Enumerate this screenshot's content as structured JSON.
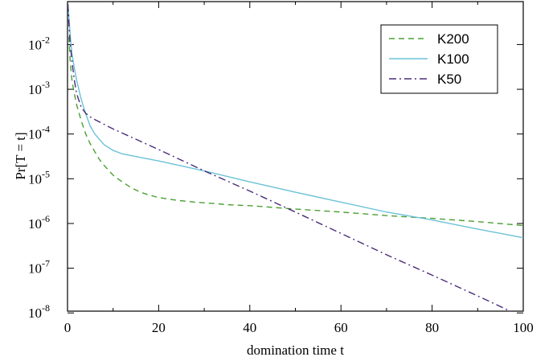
{
  "chart_data": {
    "type": "line",
    "xlabel": "domination time t",
    "ylabel": "Pr[T = t]",
    "xlim": [
      0,
      100
    ],
    "ylim": [
      1e-08,
      0.1
    ],
    "y_scale": "log",
    "grid": false,
    "legend_position": "top-right",
    "x_ticks": [
      {
        "value": 0,
        "label": "0"
      },
      {
        "value": 20,
        "label": "20"
      },
      {
        "value": 40,
        "label": "40"
      },
      {
        "value": 60,
        "label": "60"
      },
      {
        "value": 80,
        "label": "80"
      },
      {
        "value": 100,
        "label": "100"
      }
    ],
    "y_ticks": [
      {
        "value": 1e-08,
        "base": "10",
        "exp": "-8"
      },
      {
        "value": 1e-07,
        "base": "10",
        "exp": "-7"
      },
      {
        "value": 1e-06,
        "base": "10",
        "exp": "-6"
      },
      {
        "value": 1e-05,
        "base": "10",
        "exp": "-5"
      },
      {
        "value": 0.0001,
        "base": "10",
        "exp": "-4"
      },
      {
        "value": 0.001,
        "base": "10",
        "exp": "-3"
      },
      {
        "value": 0.01,
        "base": "10",
        "exp": "-2"
      }
    ],
    "series": [
      {
        "name": "K200",
        "color": "#4aa033",
        "dash": "dashed",
        "x": [
          0.3,
          0.6,
          1,
          1.5,
          2,
          3,
          4,
          5,
          6,
          7,
          8,
          10,
          12,
          14,
          16,
          18,
          20,
          24,
          28,
          32,
          36,
          40,
          50,
          60,
          70,
          80,
          90,
          100
        ],
        "y": [
          0.015,
          0.004,
          0.0015,
          0.0008,
          0.00045,
          0.0002,
          0.0001,
          6e-05,
          4e-05,
          2.7e-05,
          2e-05,
          1.2e-05,
          8.5e-06,
          6.3e-06,
          5e-06,
          4.3e-06,
          3.8e-06,
          3.3e-06,
          3e-06,
          2.8e-06,
          2.6e-06,
          2.5e-06,
          2.1e-06,
          1.8e-06,
          1.5e-06,
          1.3e-06,
          1.1e-06,
          9e-07
        ]
      },
      {
        "name": "K100",
        "color": "#6cc2d6",
        "dash": "solid",
        "x": [
          0.2,
          0.4,
          0.7,
          1,
          1.5,
          2,
          3,
          4,
          5,
          6,
          8,
          10,
          12,
          16,
          20,
          30,
          40,
          50,
          60,
          70,
          80,
          90,
          100
        ],
        "y": [
          0.06,
          0.03,
          0.012,
          0.006,
          0.003,
          0.0016,
          0.0006,
          0.00028,
          0.00015,
          0.0001,
          5.8e-05,
          4.3e-05,
          3.6e-05,
          3e-05,
          2.5e-05,
          1.5e-05,
          8.5e-06,
          5e-06,
          3e-06,
          1.8e-06,
          1.2e-06,
          7.5e-07,
          4.8e-07
        ]
      },
      {
        "name": "K50",
        "color": "#4b2d7a",
        "dash": "dashdot",
        "x": [
          0.1,
          0.3,
          0.6,
          1,
          1.5,
          2,
          3,
          4,
          5,
          6,
          10,
          20,
          30,
          40,
          50,
          60,
          70,
          80,
          90,
          98
        ],
        "y": [
          0.08,
          0.03,
          0.01,
          0.004,
          0.0016,
          0.0008,
          0.0004,
          0.00029,
          0.00024,
          0.00021,
          0.00013,
          4.5e-05,
          1.5e-05,
          5.3e-06,
          1.8e-06,
          6e-07,
          2e-07,
          7e-08,
          2.4e-08,
          1e-08
        ]
      }
    ]
  }
}
